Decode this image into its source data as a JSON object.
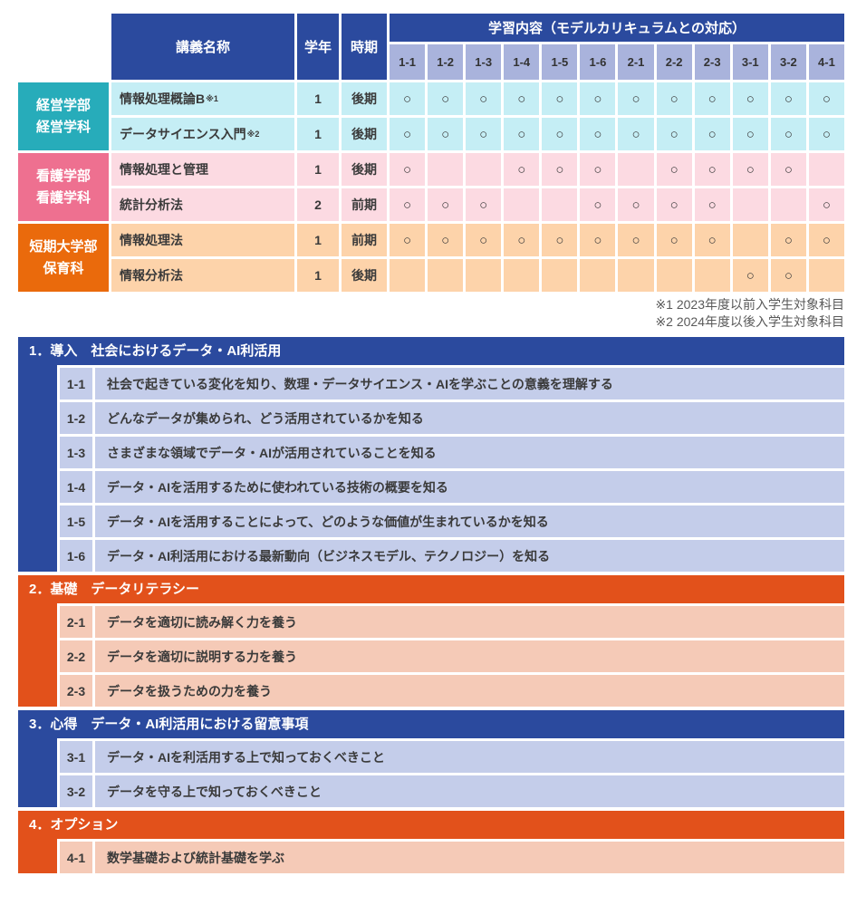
{
  "colors": {
    "header_blue": "#2b4a9e",
    "subheader_periwinkle": "#a9b3dc",
    "teal": "#27acba",
    "teal_row": "#c5eef5",
    "pink": "#ee7090",
    "pink_row": "#fcdae2",
    "orange": "#ea6a0c",
    "orange_row": "#fdd3aa",
    "section_blue": "#2b4a9e",
    "section_blue_row": "#c4cdea",
    "section_orange": "#e2511b",
    "section_orange_row": "#f5cab7",
    "text": "#3a3a3a"
  },
  "table": {
    "headers": {
      "course": "講義名称",
      "year": "学年",
      "term": "時期",
      "content": "学習内容（モデルカリキュラムとの対応）"
    },
    "columns": [
      "1-1",
      "1-2",
      "1-3",
      "1-4",
      "1-5",
      "1-6",
      "2-1",
      "2-2",
      "2-3",
      "3-1",
      "3-2",
      "4-1"
    ],
    "mark": "○",
    "groups": [
      {
        "label_lines": [
          "経営学部",
          "経営学科"
        ],
        "theme": "teal",
        "courses": [
          {
            "name": "情報処理概論B",
            "note": "※1",
            "year": "1",
            "term": "後期",
            "marks": [
              1,
              1,
              1,
              1,
              1,
              1,
              1,
              1,
              1,
              1,
              1,
              1
            ]
          },
          {
            "name": "データサイエンス入門",
            "note": "※2",
            "year": "1",
            "term": "後期",
            "marks": [
              1,
              1,
              1,
              1,
              1,
              1,
              1,
              1,
              1,
              1,
              1,
              1
            ]
          }
        ]
      },
      {
        "label_lines": [
          "看護学部",
          "看護学科"
        ],
        "theme": "pink",
        "courses": [
          {
            "name": "情報処理と管理",
            "note": "",
            "year": "1",
            "term": "後期",
            "marks": [
              1,
              0,
              0,
              1,
              1,
              1,
              0,
              1,
              1,
              1,
              1,
              0
            ]
          },
          {
            "name": "統計分析法",
            "note": "",
            "year": "2",
            "term": "前期",
            "marks": [
              1,
              1,
              1,
              0,
              0,
              1,
              1,
              1,
              1,
              0,
              0,
              1
            ]
          }
        ]
      },
      {
        "label_lines": [
          "短期大学部",
          "保育科"
        ],
        "theme": "orange",
        "courses": [
          {
            "name": "情報処理法",
            "note": "",
            "year": "1",
            "term": "前期",
            "marks": [
              1,
              1,
              1,
              1,
              1,
              1,
              1,
              1,
              1,
              0,
              1,
              1
            ]
          },
          {
            "name": "情報分析法",
            "note": "",
            "year": "1",
            "term": "後期",
            "marks": [
              0,
              0,
              0,
              0,
              0,
              0,
              0,
              0,
              0,
              1,
              1,
              0
            ]
          }
        ]
      }
    ]
  },
  "footnotes": [
    "※1 2023年度以前入学生対象科目",
    "※2 2024年度以後入学生対象科目"
  ],
  "sections": [
    {
      "title": "1．導入　社会におけるデータ・AI利活用",
      "theme": "blue",
      "items": [
        {
          "id": "1-1",
          "text": "社会で起きている変化を知り、数理・データサイエンス・AIを学ぶことの意義を理解する"
        },
        {
          "id": "1-2",
          "text": "どんなデータが集められ、どう活用されているかを知る"
        },
        {
          "id": "1-3",
          "text": "さまざまな領域でデータ・AIが活用されていることを知る"
        },
        {
          "id": "1-4",
          "text": "データ・AIを活用するために使われている技術の概要を知る"
        },
        {
          "id": "1-5",
          "text": "データ・AIを活用することによって、どのような価値が生まれているかを知る"
        },
        {
          "id": "1-6",
          "text": "データ・AI利活用における最新動向（ビジネスモデル、テクノロジー）を知る"
        }
      ]
    },
    {
      "title": "2．基礎　データリテラシー",
      "theme": "orange",
      "items": [
        {
          "id": "2-1",
          "text": "データを適切に読み解く力を養う"
        },
        {
          "id": "2-2",
          "text": "データを適切に説明する力を養う"
        },
        {
          "id": "2-3",
          "text": "データを扱うための力を養う"
        }
      ]
    },
    {
      "title": "3．心得　データ・AI利活用における留意事項",
      "theme": "blue",
      "items": [
        {
          "id": "3-1",
          "text": "データ・AIを利活用する上で知っておくべきこと"
        },
        {
          "id": "3-2",
          "text": "データを守る上で知っておくべきこと"
        }
      ]
    },
    {
      "title": "4．オプション",
      "theme": "orange",
      "items": [
        {
          "id": "4-1",
          "text": "数学基礎および統計基礎を学ぶ"
        }
      ]
    }
  ]
}
